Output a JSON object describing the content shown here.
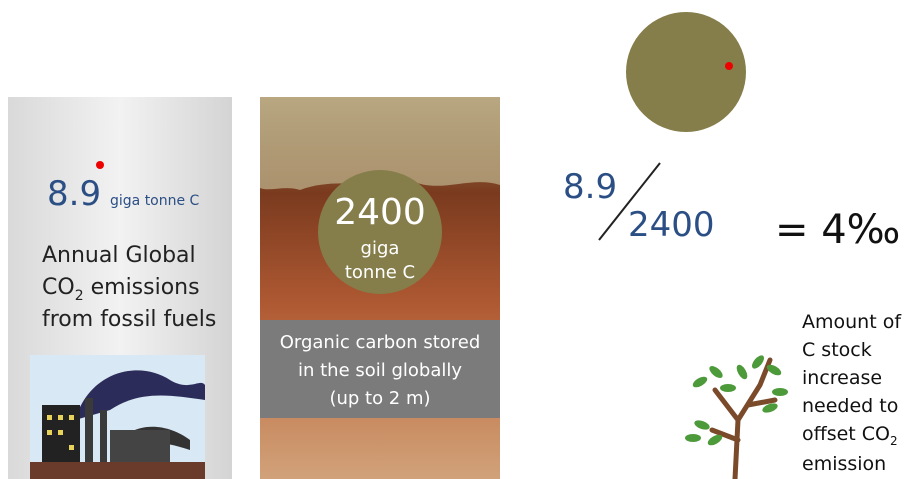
{
  "emissions": {
    "amount": "8.9",
    "unit": "giga tonne C",
    "label": [
      "Annual Global",
      "CO",
      "2",
      " emissions",
      "from fossil fuels"
    ]
  },
  "soil": {
    "amount": "2400",
    "unit": [
      "giga",
      "tonne C"
    ],
    "caption": [
      "Organic carbon stored",
      "in the soil globally",
      "(up to 2 m)"
    ]
  },
  "ratio": {
    "numerator": "8.9",
    "denominator": "2400",
    "result": "= 4‰"
  },
  "tree_note": [
    "Amount of",
    "C stock",
    "increase",
    "needed to",
    "offset CO",
    "2",
    "emission"
  ]
}
